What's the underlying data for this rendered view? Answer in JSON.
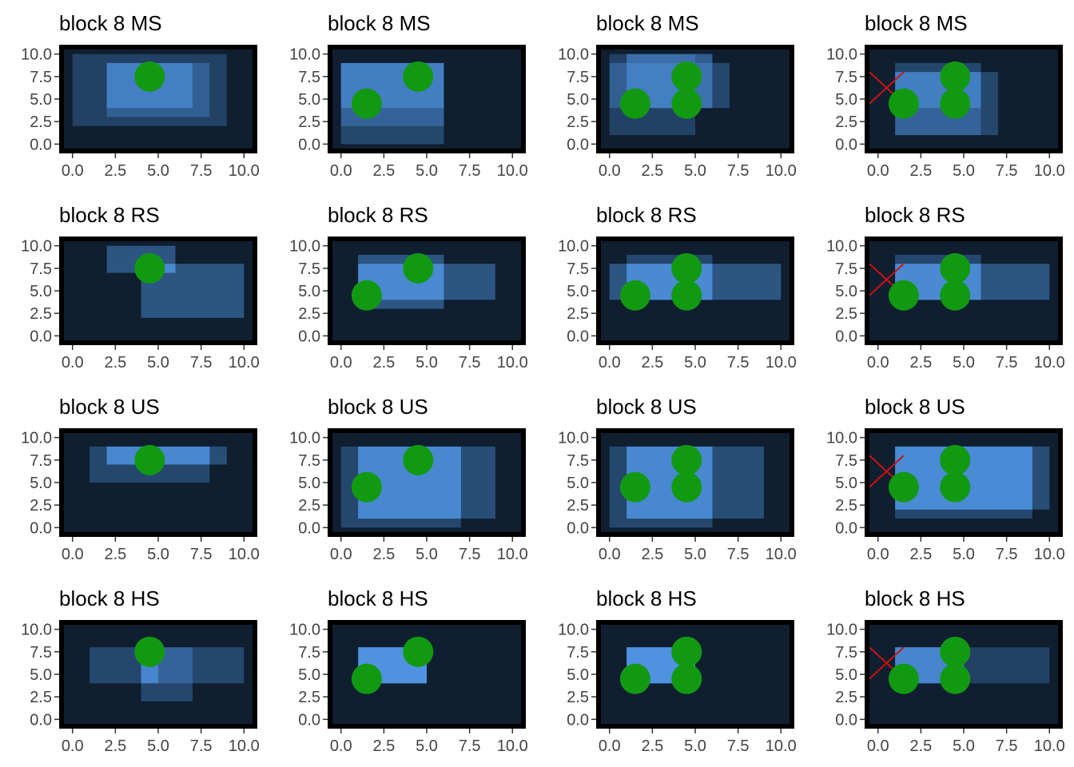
{
  "colors": {
    "panel_bg": "#0f1f30",
    "frame": "#000000",
    "rect_fill": "#5aa7ff",
    "point": "#129912",
    "cross": "#cc1111",
    "tick_text": "#444444",
    "title_text": "#000000"
  },
  "axis": {
    "xlim": [
      -0.5,
      10.5
    ],
    "ylim": [
      -0.5,
      10.5
    ],
    "x_ticks": [
      "0.0",
      "2.5",
      "5.0",
      "7.5",
      "10.0"
    ],
    "y_ticks": [
      "0.0",
      "2.5",
      "5.0",
      "7.5",
      "10.0"
    ],
    "tick_values": [
      0,
      2.5,
      5,
      7.5,
      10
    ]
  },
  "chart_data": [
    {
      "type": "heatmap",
      "title": "block 8 MS",
      "layers": [
        {
          "rect": [
            0,
            2,
            9,
            10
          ],
          "alpha": 0.25
        },
        {
          "rect": [
            2,
            3,
            8,
            9
          ],
          "alpha": 0.3
        },
        {
          "rect": [
            2,
            4,
            7,
            9
          ],
          "alpha": 0.45
        }
      ],
      "points": [
        [
          4.5,
          7.5
        ]
      ],
      "cross": false
    },
    {
      "type": "heatmap",
      "title": "block 8 MS",
      "layers": [
        {
          "rect": [
            0,
            0,
            6,
            9
          ],
          "alpha": 0.3
        },
        {
          "rect": [
            0,
            2,
            6,
            9
          ],
          "alpha": 0.3
        },
        {
          "rect": [
            0,
            4,
            6,
            9
          ],
          "alpha": 0.4
        }
      ],
      "points": [
        [
          1.5,
          4.5
        ],
        [
          4.5,
          7.5
        ]
      ],
      "cross": false
    },
    {
      "type": "heatmap",
      "title": "block 8 MS",
      "layers": [
        {
          "rect": [
            0,
            1,
            5,
            10
          ],
          "alpha": 0.25
        },
        {
          "rect": [
            0,
            4,
            7,
            9
          ],
          "alpha": 0.3
        },
        {
          "rect": [
            1,
            4,
            6,
            10
          ],
          "alpha": 0.45
        }
      ],
      "points": [
        [
          1.5,
          4.5
        ],
        [
          4.5,
          4.5
        ],
        [
          4.5,
          7.5
        ]
      ],
      "cross": false
    },
    {
      "type": "heatmap",
      "title": "block 8 MS",
      "layers": [
        {
          "rect": [
            1,
            1,
            7,
            8
          ],
          "alpha": 0.3
        },
        {
          "rect": [
            1,
            1,
            6,
            9
          ],
          "alpha": 0.3
        },
        {
          "rect": [
            1,
            4,
            6,
            8
          ],
          "alpha": 0.4
        }
      ],
      "points": [
        [
          1.5,
          4.5
        ],
        [
          4.5,
          4.5
        ],
        [
          4.5,
          7.5
        ]
      ],
      "cross": true
    },
    {
      "type": "heatmap",
      "title": "block 8 RS",
      "layers": [
        {
          "rect": [
            2,
            7,
            6,
            10
          ],
          "alpha": 0.4
        },
        {
          "rect": [
            4,
            2,
            10,
            8
          ],
          "alpha": 0.4
        },
        {
          "rect": [
            4,
            7,
            6,
            8
          ],
          "alpha": 0.4
        }
      ],
      "points": [
        [
          4.5,
          7.5
        ]
      ],
      "cross": false
    },
    {
      "type": "heatmap",
      "title": "block 8 RS",
      "layers": [
        {
          "rect": [
            1,
            4,
            9,
            8
          ],
          "alpha": 0.4
        },
        {
          "rect": [
            1,
            3,
            6,
            9
          ],
          "alpha": 0.4
        },
        {
          "rect": [
            1,
            4,
            6,
            8
          ],
          "alpha": 0.4
        }
      ],
      "points": [
        [
          1.5,
          4.5
        ],
        [
          4.5,
          7.5
        ]
      ],
      "cross": false
    },
    {
      "type": "heatmap",
      "title": "block 8 RS",
      "layers": [
        {
          "rect": [
            0,
            4,
            10,
            8
          ],
          "alpha": 0.4
        },
        {
          "rect": [
            1,
            4,
            6,
            9
          ],
          "alpha": 0.3
        },
        {
          "rect": [
            1,
            4,
            6,
            8
          ],
          "alpha": 0.5
        }
      ],
      "points": [
        [
          1.5,
          4.5
        ],
        [
          4.5,
          4.5
        ],
        [
          4.5,
          7.5
        ]
      ],
      "cross": false
    },
    {
      "type": "heatmap",
      "title": "block 8 RS",
      "layers": [
        {
          "rect": [
            1,
            4,
            10,
            8
          ],
          "alpha": 0.4
        },
        {
          "rect": [
            1,
            4,
            6,
            9
          ],
          "alpha": 0.3
        },
        {
          "rect": [
            1,
            4,
            6,
            8
          ],
          "alpha": 0.5
        }
      ],
      "points": [
        [
          1.5,
          4.5
        ],
        [
          4.5,
          4.5
        ],
        [
          4.5,
          7.5
        ]
      ],
      "cross": true
    },
    {
      "type": "heatmap",
      "title": "block 8 US",
      "layers": [
        {
          "rect": [
            1,
            5,
            8,
            9
          ],
          "alpha": 0.3
        },
        {
          "rect": [
            2,
            7,
            9,
            9
          ],
          "alpha": 0.35
        },
        {
          "rect": [
            2,
            7,
            8,
            9
          ],
          "alpha": 0.5
        }
      ],
      "points": [
        [
          4.5,
          7.5
        ]
      ],
      "cross": false
    },
    {
      "type": "heatmap",
      "title": "block 8 US",
      "layers": [
        {
          "rect": [
            0,
            0,
            7,
            9
          ],
          "alpha": 0.3
        },
        {
          "rect": [
            1,
            1,
            9,
            9
          ],
          "alpha": 0.35
        },
        {
          "rect": [
            1,
            1,
            7,
            9
          ],
          "alpha": 0.5
        }
      ],
      "points": [
        [
          1.5,
          4.5
        ],
        [
          4.5,
          7.5
        ]
      ],
      "cross": false
    },
    {
      "type": "heatmap",
      "title": "block 8 US",
      "layers": [
        {
          "rect": [
            0,
            0,
            6,
            9
          ],
          "alpha": 0.3
        },
        {
          "rect": [
            1,
            1,
            9,
            9
          ],
          "alpha": 0.35
        },
        {
          "rect": [
            1,
            1,
            6,
            9
          ],
          "alpha": 0.5
        }
      ],
      "points": [
        [
          1.5,
          4.5
        ],
        [
          4.5,
          4.5
        ],
        [
          4.5,
          7.5
        ]
      ],
      "cross": false
    },
    {
      "type": "heatmap",
      "title": "block 8 US",
      "layers": [
        {
          "rect": [
            1,
            1,
            9,
            9
          ],
          "alpha": 0.3
        },
        {
          "rect": [
            1,
            2,
            10,
            9
          ],
          "alpha": 0.35
        },
        {
          "rect": [
            1,
            2,
            9,
            9
          ],
          "alpha": 0.55
        }
      ],
      "points": [
        [
          1.5,
          4.5
        ],
        [
          4.5,
          4.5
        ],
        [
          4.5,
          7.5
        ]
      ],
      "cross": true
    },
    {
      "type": "heatmap",
      "title": "block 8 HS",
      "layers": [
        {
          "rect": [
            1,
            4,
            10,
            8
          ],
          "alpha": 0.3
        },
        {
          "rect": [
            4,
            2,
            7,
            8
          ],
          "alpha": 0.3
        },
        {
          "rect": [
            4,
            4,
            5,
            8
          ],
          "alpha": 0.5
        }
      ],
      "points": [
        [
          4.5,
          7.5
        ]
      ],
      "cross": false
    },
    {
      "type": "heatmap",
      "title": "block 8 HS",
      "layers": [
        {
          "rect": [
            1,
            4,
            5,
            8
          ],
          "alpha": 0.7
        },
        {
          "rect": [
            1,
            4,
            5,
            8
          ],
          "alpha": 0.3
        },
        {
          "rect": [
            1,
            4,
            5,
            8
          ],
          "alpha": 0.3
        }
      ],
      "points": [
        [
          1.5,
          4.5
        ],
        [
          4.5,
          7.5
        ]
      ],
      "cross": false
    },
    {
      "type": "heatmap",
      "title": "block 8 HS",
      "layers": [
        {
          "rect": [
            1,
            4,
            5,
            8
          ],
          "alpha": 0.7
        },
        {
          "rect": [
            1,
            4,
            5,
            8
          ],
          "alpha": 0.3
        },
        {
          "rect": [
            1,
            4,
            5,
            8
          ],
          "alpha": 0.3
        }
      ],
      "points": [
        [
          1.5,
          4.5
        ],
        [
          4.5,
          4.5
        ],
        [
          4.5,
          7.5
        ]
      ],
      "cross": false
    },
    {
      "type": "heatmap",
      "title": "block 8 HS",
      "layers": [
        {
          "rect": [
            1,
            4,
            10,
            8
          ],
          "alpha": 0.25
        },
        {
          "rect": [
            1,
            4,
            5,
            8
          ],
          "alpha": 0.4
        },
        {
          "rect": [
            1,
            4,
            5,
            8
          ],
          "alpha": 0.45
        }
      ],
      "points": [
        [
          1.5,
          4.5
        ],
        [
          4.5,
          4.5
        ],
        [
          4.5,
          7.5
        ]
      ],
      "cross": true
    }
  ]
}
